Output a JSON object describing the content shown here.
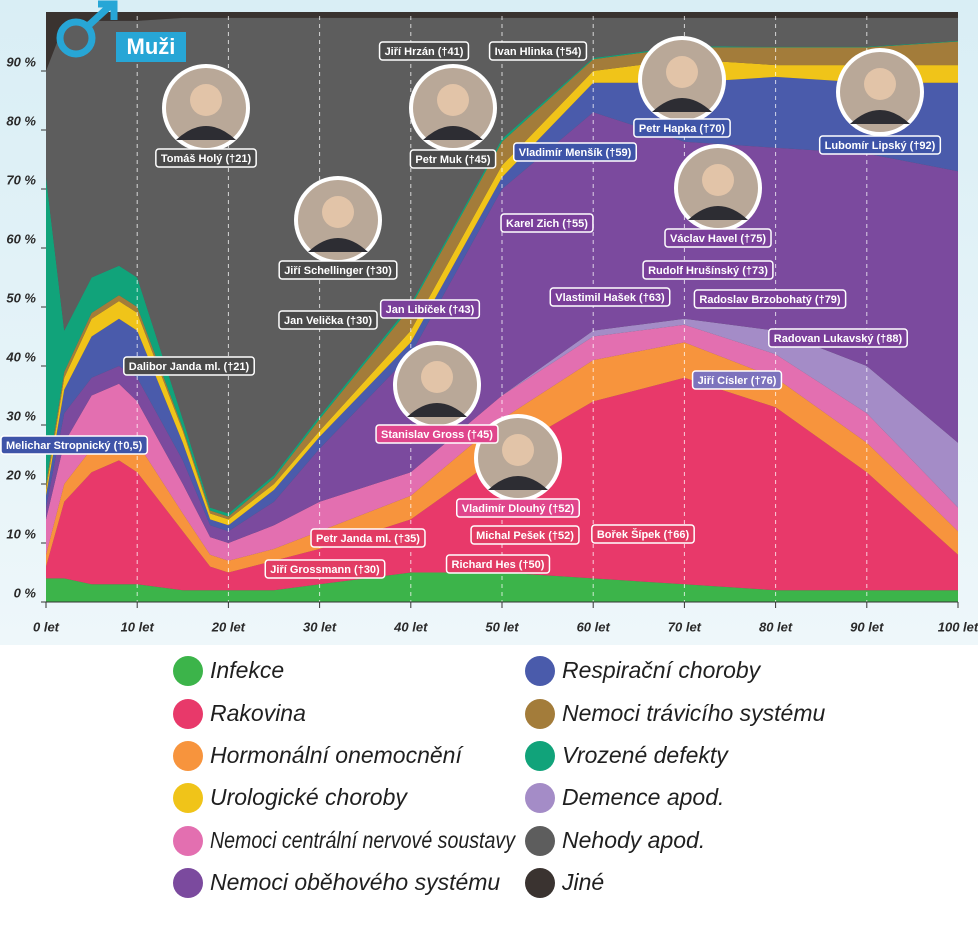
{
  "chart_data": {
    "type": "stacked-area",
    "title": "Muži",
    "x": [
      0,
      2,
      5,
      8,
      10,
      15,
      18,
      20,
      25,
      30,
      40,
      50,
      60,
      70,
      80,
      90,
      100
    ],
    "series": [
      {
        "name": "Infekce",
        "color": "#3cb44a",
        "values": [
          4,
          4,
          3,
          3,
          3,
          2,
          2,
          2,
          2,
          3,
          5,
          5,
          4,
          3,
          2,
          2,
          2
        ]
      },
      {
        "name": "Rakovina",
        "color": "#e8396a",
        "values": [
          2,
          13,
          19,
          21,
          19,
          10,
          4,
          3,
          5,
          6,
          9,
          20,
          30,
          35,
          31,
          20,
          6
        ]
      },
      {
        "name": "Hormonální onemocnění",
        "color": "#f7943d",
        "values": [
          2,
          3,
          4,
          4,
          5,
          3,
          2,
          2,
          2,
          3,
          4,
          6,
          7,
          6,
          5,
          5,
          4
        ]
      },
      {
        "name": "Nemoci centrální nervové soustavy",
        "color": "#e36fb0",
        "values": [
          6,
          7,
          9,
          9,
          7,
          5,
          3,
          3,
          4,
          5,
          4,
          4,
          4,
          3,
          4,
          5,
          4
        ]
      },
      {
        "name": "Demence apod.",
        "color": "#a48cc7",
        "values": [
          0,
          0,
          0,
          0,
          0,
          0,
          0,
          0,
          0,
          0,
          0,
          0,
          1,
          1,
          4,
          8,
          11
        ]
      },
      {
        "name": "Nemoci oběhového systému",
        "color": "#7b4a9e",
        "values": [
          2,
          5,
          3,
          3,
          4,
          4,
          2,
          2,
          4,
          9,
          20,
          35,
          37,
          30,
          31,
          36,
          46
        ]
      },
      {
        "name": "Respirační choroby",
        "color": "#4a5bab",
        "values": [
          2,
          4,
          7,
          8,
          8,
          3,
          1,
          1,
          2,
          2,
          2,
          2,
          5,
          10,
          12,
          12,
          15
        ]
      },
      {
        "name": "Urologické choroby",
        "color": "#f0c419",
        "values": [
          1,
          2,
          3,
          3,
          3,
          2,
          1,
          1,
          1,
          1,
          2,
          2,
          2,
          4,
          2,
          3,
          3
        ]
      },
      {
        "name": "Nemoci trávicího systému",
        "color": "#a37c3a",
        "values": [
          1,
          1,
          1,
          1,
          1,
          0.5,
          0.5,
          0.5,
          1,
          2,
          4,
          4,
          2,
          2,
          3,
          3,
          4
        ]
      },
      {
        "name": "Vrozené defekty",
        "color": "#11a37a",
        "values": [
          52,
          7,
          6,
          5,
          5,
          1.5,
          0.5,
          0.5,
          0.5,
          0.5,
          0.5,
          0.5,
          0.2,
          0.2,
          0.1,
          0.1,
          0.1
        ]
      },
      {
        "name": "Nehody apod.",
        "color": "#5d5d5d",
        "values": [
          18,
          52,
          43.5,
          41.5,
          43.5,
          68,
          83,
          84,
          77.5,
          67.5,
          48.5,
          20.5,
          6.8,
          4.8,
          4.9,
          4.9,
          3.9
        ]
      },
      {
        "name": "Jiné",
        "color": "#3a3330",
        "values": [
          10,
          2,
          1.5,
          1.5,
          1.5,
          1,
          1,
          1,
          1,
          1,
          1,
          1,
          1,
          1,
          1,
          1,
          1
        ]
      }
    ],
    "xlim": [
      0,
      100
    ],
    "xticks": [
      {
        "value": 0,
        "label": "0 let"
      },
      {
        "value": 10,
        "label": "10 let"
      },
      {
        "value": 20,
        "label": "20 let"
      },
      {
        "value": 30,
        "label": "30 let"
      },
      {
        "value": 40,
        "label": "40 let"
      },
      {
        "value": 50,
        "label": "50 let"
      },
      {
        "value": 60,
        "label": "60 let"
      },
      {
        "value": 70,
        "label": "70 let"
      },
      {
        "value": 80,
        "label": "80 let"
      },
      {
        "value": 90,
        "label": "90 let"
      },
      {
        "value": 100,
        "label": "100 let"
      }
    ],
    "ylim": [
      0,
      100
    ],
    "yticks": [
      {
        "value": 0,
        "label": "0 %"
      },
      {
        "value": 10,
        "label": "10 %"
      },
      {
        "value": 20,
        "label": "20 %"
      },
      {
        "value": 30,
        "label": "30 %"
      },
      {
        "value": 40,
        "label": "40 %"
      },
      {
        "value": 50,
        "label": "50 %"
      },
      {
        "value": 60,
        "label": "60 %"
      },
      {
        "value": 70,
        "label": "70 %"
      },
      {
        "value": 80,
        "label": "80 %"
      },
      {
        "value": 90,
        "label": "90 %"
      }
    ],
    "grid": "x",
    "annotations": [
      "Tomáš Holý (†21)",
      "Jiří Hrzán (†41)",
      "Ivan Hlinka (†54)",
      "Petr Muk (†45)",
      "Petr Hapka (†70)",
      "Lubomír Lipský (†92)",
      "Vladimír Menšík (†59)",
      "Karel Zich (†55)",
      "Jiří Schellinger (†30)",
      "Václav Havel (†75)",
      "Rudolf Hrušínský (†73)",
      "Vlastimil Hašek (†63)",
      "Radoslav Brzobohatý (†79)",
      "Jan Libíček (†43)",
      "Jan Velička (†30)",
      "Radovan Lukavský (†88)",
      "Dalibor Janda ml. (†21)",
      "Jiří Císler (†76)",
      "Melichar Stropnický (†0,5)",
      "Stanislav Gross (†45)",
      "Vladimír Dlouhý (†52)",
      "Petr Janda ml. (†35)",
      "Michal Pešek (†52)",
      "Bořek Šípek (†66)",
      "Jiří Grossmann (†30)",
      "Richard Hes (†50)"
    ]
  }
}
